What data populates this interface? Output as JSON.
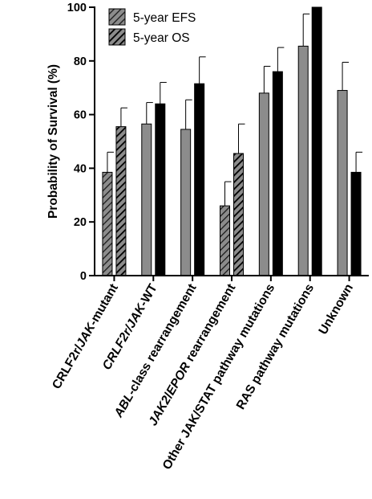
{
  "chart_data": {
    "type": "bar",
    "ylabel": "Probability of Survival (%)",
    "xlabel": "",
    "ylim": [
      0,
      100
    ],
    "yticks": [
      0,
      20,
      40,
      60,
      80,
      100
    ],
    "legend_position": "top-left",
    "grid": false,
    "categories": [
      {
        "parts": [
          {
            "t": "CRLF2r/",
            "i": false
          },
          {
            "t": "JAK",
            "i": true
          },
          {
            "t": "-mutant",
            "i": false
          }
        ]
      },
      {
        "parts": [
          {
            "t": "CRLF2r/",
            "i": true
          },
          {
            "t": "JAK",
            "i": true
          },
          {
            "t": "-WT",
            "i": false
          }
        ]
      },
      {
        "parts": [
          {
            "t": "ABL",
            "i": true
          },
          {
            "t": "-class rearrangement",
            "i": false
          }
        ]
      },
      {
        "parts": [
          {
            "t": "JAK2",
            "i": true
          },
          {
            "t": "/",
            "i": false
          },
          {
            "t": "EPOR",
            "i": true
          },
          {
            "t": " rearrangement",
            "i": false
          }
        ]
      },
      {
        "parts": [
          {
            "t": "Other JAK/STAT pathway mutations",
            "i": false
          }
        ]
      },
      {
        "parts": [
          {
            "t": "RAS pathway mutations",
            "i": false
          }
        ]
      },
      {
        "parts": [
          {
            "t": "Unknown",
            "i": false
          }
        ]
      }
    ],
    "series": [
      {
        "name": "5-year EFS",
        "color": "#8c8c8c",
        "values": [
          38.5,
          56.5,
          54.5,
          26,
          68,
          85.5,
          69
        ],
        "errors": [
          7.5,
          8,
          11,
          9,
          10,
          12,
          10.5
        ],
        "hatched": [
          true,
          false,
          false,
          true,
          false,
          false,
          false
        ]
      },
      {
        "name": "5-year OS",
        "color": "#000000",
        "values": [
          55.5,
          64,
          71.5,
          45.5,
          76,
          100,
          38.5
        ],
        "errors": [
          7,
          8,
          10,
          11,
          9,
          0,
          7.5
        ],
        "hatched": [
          true,
          false,
          false,
          true,
          false,
          false,
          false
        ]
      }
    ]
  }
}
